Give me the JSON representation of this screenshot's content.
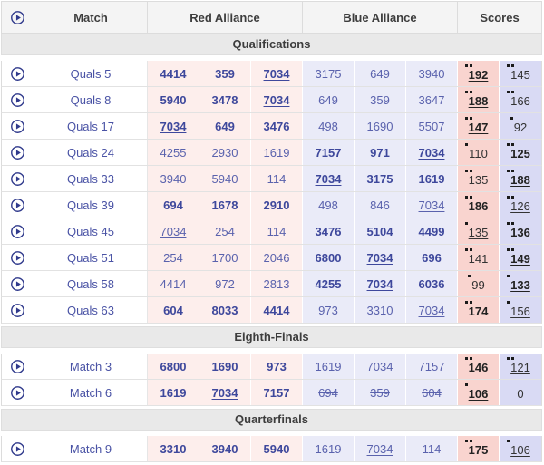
{
  "header": {
    "play_icon": "play-circle-icon",
    "match": "Match",
    "red": "Red Alliance",
    "blue": "Blue Alliance",
    "scores": "Scores"
  },
  "colors": {
    "red_team_bg": "#fdeeec",
    "blue_team_bg": "#eaebf8",
    "red_score_bg": "#f9d4cf",
    "blue_score_bg": "#d9daf4",
    "team_link": "#4a53a5",
    "header_bg": "#f4f4f4",
    "section_bg": "#e9e9e9",
    "play_icon": "#303a8c"
  },
  "table": {
    "sections": [
      {
        "title": "Qualifications",
        "matches": [
          {
            "label": "Quals 5",
            "red": {
              "teams": [
                {
                  "number": "4414",
                  "bold": true
                },
                {
                  "number": "359",
                  "bold": true
                },
                {
                  "number": "7034",
                  "bold": true,
                  "underline": true
                }
              ],
              "score": {
                "value": "192",
                "rp": 2,
                "bold": true,
                "underline": true
              }
            },
            "blue": {
              "teams": [
                {
                  "number": "3175"
                },
                {
                  "number": "649"
                },
                {
                  "number": "3940"
                }
              ],
              "score": {
                "value": "145",
                "rp": 2
              }
            }
          },
          {
            "label": "Quals 8",
            "red": {
              "teams": [
                {
                  "number": "5940",
                  "bold": true
                },
                {
                  "number": "3478",
                  "bold": true
                },
                {
                  "number": "7034",
                  "bold": true,
                  "underline": true
                }
              ],
              "score": {
                "value": "188",
                "rp": 2,
                "bold": true,
                "underline": true
              }
            },
            "blue": {
              "teams": [
                {
                  "number": "649"
                },
                {
                  "number": "359"
                },
                {
                  "number": "3647"
                }
              ],
              "score": {
                "value": "166",
                "rp": 2
              }
            }
          },
          {
            "label": "Quals 17",
            "red": {
              "teams": [
                {
                  "number": "7034",
                  "bold": true,
                  "underline": true
                },
                {
                  "number": "649",
                  "bold": true
                },
                {
                  "number": "3476",
                  "bold": true
                }
              ],
              "score": {
                "value": "147",
                "rp": 2,
                "bold": true,
                "underline": true
              }
            },
            "blue": {
              "teams": [
                {
                  "number": "498"
                },
                {
                  "number": "1690"
                },
                {
                  "number": "5507"
                }
              ],
              "score": {
                "value": "92",
                "rp": 1
              }
            }
          },
          {
            "label": "Quals 24",
            "red": {
              "teams": [
                {
                  "number": "4255"
                },
                {
                  "number": "2930"
                },
                {
                  "number": "1619"
                }
              ],
              "score": {
                "value": "110",
                "rp": 1
              }
            },
            "blue": {
              "teams": [
                {
                  "number": "7157",
                  "bold": true
                },
                {
                  "number": "971",
                  "bold": true
                },
                {
                  "number": "7034",
                  "bold": true,
                  "underline": true
                }
              ],
              "score": {
                "value": "125",
                "rp": 2,
                "bold": true,
                "underline": true
              }
            }
          },
          {
            "label": "Quals 33",
            "red": {
              "teams": [
                {
                  "number": "3940"
                },
                {
                  "number": "5940"
                },
                {
                  "number": "114"
                }
              ],
              "score": {
                "value": "135",
                "rp": 2
              }
            },
            "blue": {
              "teams": [
                {
                  "number": "7034",
                  "bold": true,
                  "underline": true
                },
                {
                  "number": "3175",
                  "bold": true
                },
                {
                  "number": "1619",
                  "bold": true
                }
              ],
              "score": {
                "value": "188",
                "rp": 2,
                "bold": true,
                "underline": true
              }
            }
          },
          {
            "label": "Quals 39",
            "red": {
              "teams": [
                {
                  "number": "694",
                  "bold": true
                },
                {
                  "number": "1678",
                  "bold": true
                },
                {
                  "number": "2910",
                  "bold": true
                }
              ],
              "score": {
                "value": "186",
                "rp": 2,
                "bold": true
              }
            },
            "blue": {
              "teams": [
                {
                  "number": "498"
                },
                {
                  "number": "846"
                },
                {
                  "number": "7034",
                  "underline": true
                }
              ],
              "score": {
                "value": "126",
                "rp": 2,
                "underline": true
              }
            }
          },
          {
            "label": "Quals 45",
            "red": {
              "teams": [
                {
                  "number": "7034",
                  "underline": true
                },
                {
                  "number": "254"
                },
                {
                  "number": "114"
                }
              ],
              "score": {
                "value": "135",
                "rp": 1,
                "underline": true
              }
            },
            "blue": {
              "teams": [
                {
                  "number": "3476",
                  "bold": true
                },
                {
                  "number": "5104",
                  "bold": true
                },
                {
                  "number": "4499",
                  "bold": true
                }
              ],
              "score": {
                "value": "136",
                "rp": 2,
                "bold": true
              }
            }
          },
          {
            "label": "Quals 51",
            "red": {
              "teams": [
                {
                  "number": "254"
                },
                {
                  "number": "1700"
                },
                {
                  "number": "2046"
                }
              ],
              "score": {
                "value": "141",
                "rp": 2
              }
            },
            "blue": {
              "teams": [
                {
                  "number": "6800",
                  "bold": true
                },
                {
                  "number": "7034",
                  "bold": true,
                  "underline": true
                },
                {
                  "number": "696",
                  "bold": true
                }
              ],
              "score": {
                "value": "149",
                "rp": 2,
                "bold": true,
                "underline": true
              }
            }
          },
          {
            "label": "Quals 58",
            "red": {
              "teams": [
                {
                  "number": "4414"
                },
                {
                  "number": "972"
                },
                {
                  "number": "2813"
                }
              ],
              "score": {
                "value": "99",
                "rp": 1
              }
            },
            "blue": {
              "teams": [
                {
                  "number": "4255",
                  "bold": true
                },
                {
                  "number": "7034",
                  "bold": true,
                  "underline": true
                },
                {
                  "number": "6036",
                  "bold": true
                }
              ],
              "score": {
                "value": "133",
                "rp": 1,
                "bold": true,
                "underline": true
              }
            }
          },
          {
            "label": "Quals 63",
            "red": {
              "teams": [
                {
                  "number": "604",
                  "bold": true
                },
                {
                  "number": "8033",
                  "bold": true
                },
                {
                  "number": "4414",
                  "bold": true
                }
              ],
              "score": {
                "value": "174",
                "rp": 2,
                "bold": true
              }
            },
            "blue": {
              "teams": [
                {
                  "number": "973"
                },
                {
                  "number": "3310"
                },
                {
                  "number": "7034",
                  "underline": true
                }
              ],
              "score": {
                "value": "156",
                "rp": 1,
                "underline": true
              }
            }
          }
        ]
      },
      {
        "title": "Eighth-Finals",
        "matches": [
          {
            "label": "Match 3",
            "red": {
              "teams": [
                {
                  "number": "6800",
                  "bold": true
                },
                {
                  "number": "1690",
                  "bold": true
                },
                {
                  "number": "973",
                  "bold": true
                }
              ],
              "score": {
                "value": "146",
                "rp": 2,
                "bold": true
              }
            },
            "blue": {
              "teams": [
                {
                  "number": "1619"
                },
                {
                  "number": "7034",
                  "underline": true
                },
                {
                  "number": "7157"
                }
              ],
              "score": {
                "value": "121",
                "rp": 2,
                "underline": true
              }
            }
          },
          {
            "label": "Match 6",
            "red": {
              "teams": [
                {
                  "number": "1619",
                  "bold": true
                },
                {
                  "number": "7034",
                  "bold": true,
                  "underline": true
                },
                {
                  "number": "7157",
                  "bold": true
                }
              ],
              "score": {
                "value": "106",
                "rp": 1,
                "bold": true,
                "underline": true
              }
            },
            "blue": {
              "teams": [
                {
                  "number": "694",
                  "strike": true
                },
                {
                  "number": "359",
                  "strike": true
                },
                {
                  "number": "604",
                  "strike": true
                }
              ],
              "score": {
                "value": "0",
                "rp": 0
              }
            }
          }
        ]
      },
      {
        "title": "Quarterfinals",
        "matches": [
          {
            "label": "Match 9",
            "red": {
              "teams": [
                {
                  "number": "3310",
                  "bold": true
                },
                {
                  "number": "3940",
                  "bold": true
                },
                {
                  "number": "5940",
                  "bold": true
                }
              ],
              "score": {
                "value": "175",
                "rp": 2,
                "bold": true
              }
            },
            "blue": {
              "teams": [
                {
                  "number": "1619"
                },
                {
                  "number": "7034",
                  "underline": true
                },
                {
                  "number": "114"
                }
              ],
              "score": {
                "value": "106",
                "rp": 1,
                "underline": true
              }
            }
          }
        ]
      }
    ]
  }
}
